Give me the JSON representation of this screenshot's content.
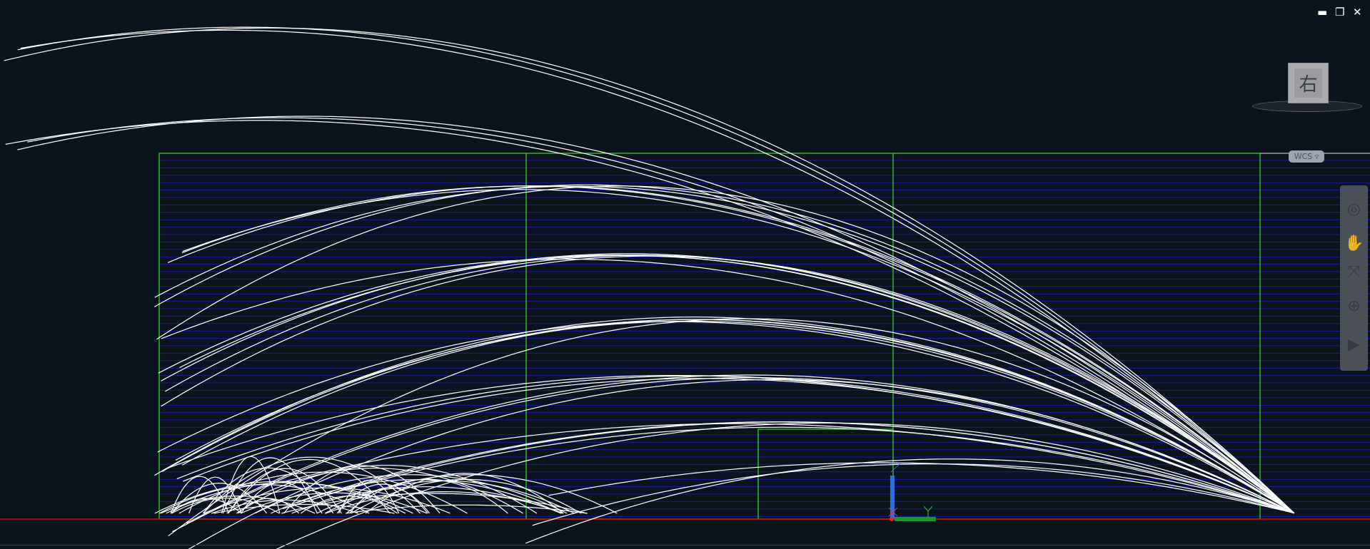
{
  "window_controls": {
    "minimize": "▬",
    "restore": "❐",
    "close": "✕"
  },
  "viewcube": {
    "face_label": "右"
  },
  "ucs_menu": {
    "label": "WCS ▿"
  },
  "navbar": {
    "icons": [
      "steering-wheel-icon",
      "pan-hand-icon",
      "zoom-icon",
      "orbit-icon",
      "showmotion-icon"
    ]
  },
  "colors": {
    "background": "#0b131d",
    "frame": "#33cc33",
    "hatch": "#1a1aa8",
    "curves": "#ffffff",
    "x_axis": "#cc1111"
  }
}
